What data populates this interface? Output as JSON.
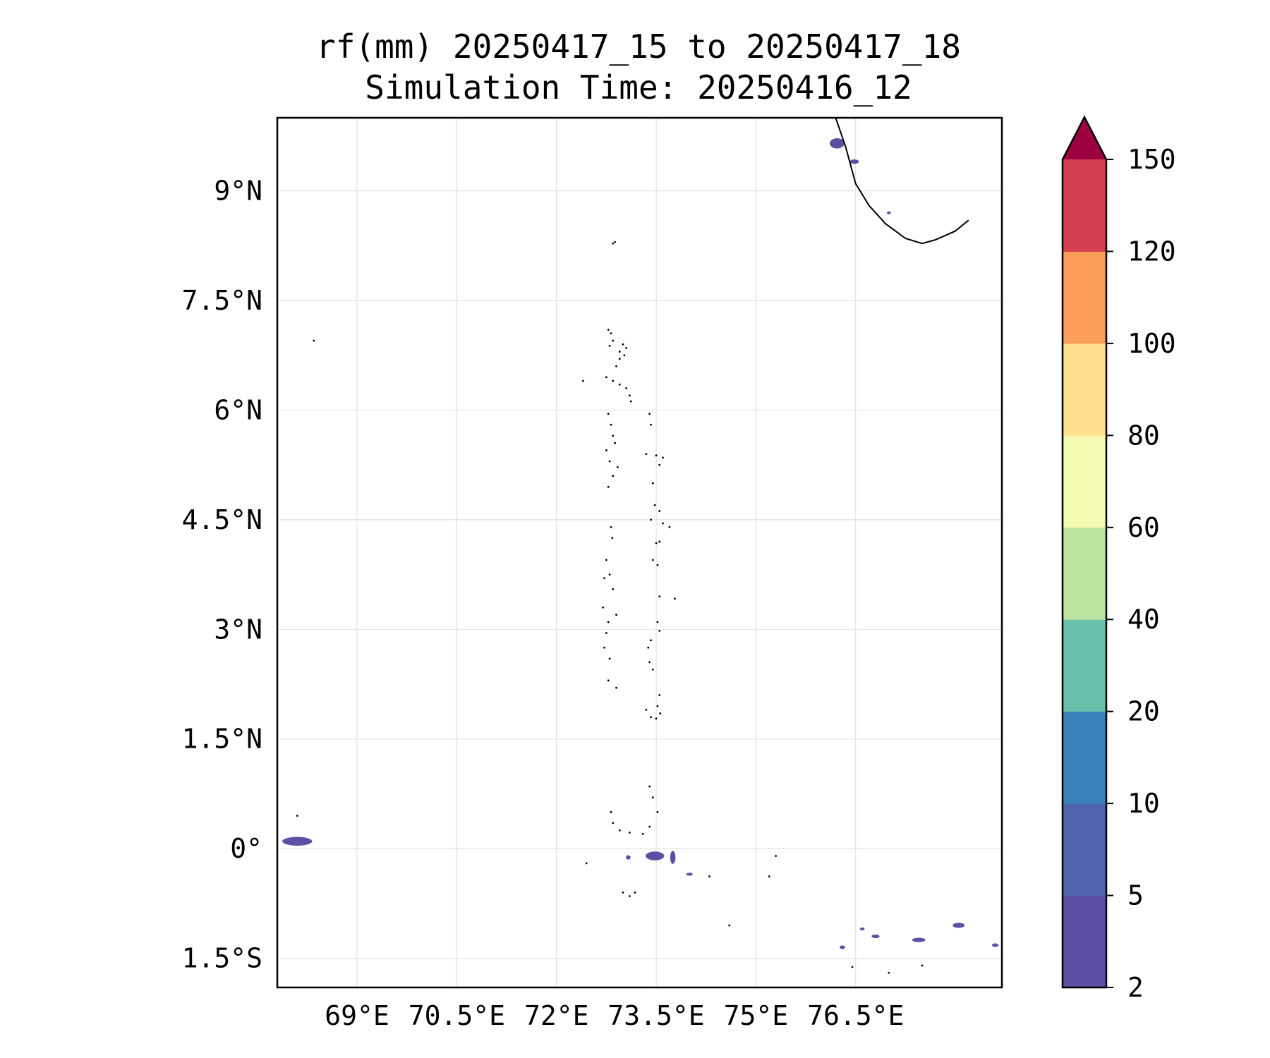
{
  "figure": {
    "title_line1": "rf(mm) 20250417_15 to 20250417_18",
    "title_line2": "Simulation Time: 20250416_12"
  },
  "map": {
    "lon_range": [
      67.8,
      78.7
    ],
    "lat_range": [
      -1.9,
      10.0
    ],
    "lon_ticks": [
      {
        "value": 69.0,
        "label": "69°E"
      },
      {
        "value": 70.5,
        "label": "70.5°E"
      },
      {
        "value": 72.0,
        "label": "72°E"
      },
      {
        "value": 73.5,
        "label": "73.5°E"
      },
      {
        "value": 75.0,
        "label": "75°E"
      },
      {
        "value": 76.5,
        "label": "76.5°E"
      }
    ],
    "lat_ticks": [
      {
        "value": 9.0,
        "label": "9°N"
      },
      {
        "value": 7.5,
        "label": "7.5°N"
      },
      {
        "value": 6.0,
        "label": "6°N"
      },
      {
        "value": 4.5,
        "label": "4.5°N"
      },
      {
        "value": 3.0,
        "label": "3°N"
      },
      {
        "value": 1.5,
        "label": "1.5°N"
      },
      {
        "value": 0.0,
        "label": "0°"
      },
      {
        "value": -1.5,
        "label": "1.5°S"
      }
    ],
    "gridlines": true,
    "coastline_colors": {
      "line": "#000000",
      "rain": "#5e4fa2"
    },
    "coastline": [
      [
        76.2,
        10.0
      ],
      [
        76.35,
        9.6
      ],
      [
        76.5,
        9.1
      ],
      [
        76.7,
        8.8
      ],
      [
        76.95,
        8.55
      ],
      [
        77.25,
        8.35
      ],
      [
        77.5,
        8.28
      ],
      [
        77.7,
        8.33
      ],
      [
        78.0,
        8.45
      ],
      [
        78.2,
        8.6
      ]
    ],
    "rain_patches": [
      {
        "lon": 68.1,
        "lat": 0.1,
        "w": 0.45,
        "h": 0.12
      },
      {
        "lon": 73.48,
        "lat": -0.1,
        "w": 0.28,
        "h": 0.12
      },
      {
        "lon": 73.75,
        "lat": -0.12,
        "w": 0.08,
        "h": 0.18
      },
      {
        "lon": 73.08,
        "lat": -0.12,
        "w": 0.07,
        "h": 0.06
      },
      {
        "lon": 74.0,
        "lat": -0.35,
        "w": 0.1,
        "h": 0.04
      },
      {
        "lon": 76.22,
        "lat": 9.65,
        "w": 0.22,
        "h": 0.14
      },
      {
        "lon": 76.48,
        "lat": 9.4,
        "w": 0.14,
        "h": 0.06
      },
      {
        "lon": 77.0,
        "lat": 8.7,
        "w": 0.06,
        "h": 0.04
      },
      {
        "lon": 76.8,
        "lat": -1.2,
        "w": 0.12,
        "h": 0.05
      },
      {
        "lon": 77.45,
        "lat": -1.25,
        "w": 0.2,
        "h": 0.06
      },
      {
        "lon": 78.05,
        "lat": -1.05,
        "w": 0.18,
        "h": 0.07
      },
      {
        "lon": 76.3,
        "lat": -1.35,
        "w": 0.08,
        "h": 0.05
      },
      {
        "lon": 76.6,
        "lat": -1.1,
        "w": 0.07,
        "h": 0.04
      },
      {
        "lon": 78.6,
        "lat": -1.32,
        "w": 0.1,
        "h": 0.05
      }
    ],
    "islands": [
      [
        72.85,
        8.28
      ],
      [
        72.88,
        8.3
      ],
      [
        68.35,
        6.95
      ],
      [
        72.78,
        7.1
      ],
      [
        72.82,
        7.05
      ],
      [
        72.85,
        6.95
      ],
      [
        72.8,
        6.88
      ],
      [
        72.95,
        6.8
      ],
      [
        73.0,
        6.9
      ],
      [
        73.05,
        6.85
      ],
      [
        72.95,
        6.7
      ],
      [
        73.02,
        6.75
      ],
      [
        72.9,
        6.6
      ],
      [
        72.4,
        6.4
      ],
      [
        72.75,
        6.45
      ],
      [
        72.85,
        6.4
      ],
      [
        72.95,
        6.35
      ],
      [
        73.05,
        6.3
      ],
      [
        73.1,
        6.2
      ],
      [
        73.12,
        6.12
      ],
      [
        72.78,
        5.95
      ],
      [
        72.82,
        5.8
      ],
      [
        72.85,
        5.65
      ],
      [
        72.88,
        5.55
      ],
      [
        72.75,
        5.45
      ],
      [
        72.8,
        5.3
      ],
      [
        72.92,
        5.22
      ],
      [
        72.85,
        5.1
      ],
      [
        72.78,
        4.95
      ],
      [
        73.4,
        5.95
      ],
      [
        73.42,
        5.8
      ],
      [
        73.35,
        5.4
      ],
      [
        73.5,
        5.38
      ],
      [
        73.6,
        5.35
      ],
      [
        73.55,
        5.25
      ],
      [
        73.45,
        5.0
      ],
      [
        73.48,
        4.7
      ],
      [
        73.55,
        4.62
      ],
      [
        73.42,
        4.5
      ],
      [
        73.6,
        4.45
      ],
      [
        73.7,
        4.4
      ],
      [
        72.82,
        4.4
      ],
      [
        72.84,
        4.25
      ],
      [
        73.5,
        4.18
      ],
      [
        73.55,
        4.2
      ],
      [
        73.45,
        3.95
      ],
      [
        73.52,
        3.88
      ],
      [
        72.75,
        3.95
      ],
      [
        72.72,
        3.7
      ],
      [
        72.8,
        3.75
      ],
      [
        72.85,
        3.55
      ],
      [
        73.55,
        3.45
      ],
      [
        73.78,
        3.42
      ],
      [
        72.7,
        3.3
      ],
      [
        72.9,
        3.2
      ],
      [
        72.78,
        3.1
      ],
      [
        72.75,
        2.95
      ],
      [
        73.52,
        3.1
      ],
      [
        73.55,
        2.98
      ],
      [
        73.42,
        2.85
      ],
      [
        73.38,
        2.75
      ],
      [
        72.72,
        2.75
      ],
      [
        72.8,
        2.6
      ],
      [
        73.4,
        2.55
      ],
      [
        73.45,
        2.45
      ],
      [
        72.78,
        2.3
      ],
      [
        72.9,
        2.2
      ],
      [
        73.55,
        2.1
      ],
      [
        73.52,
        1.95
      ],
      [
        73.35,
        1.9
      ],
      [
        73.42,
        1.8
      ],
      [
        73.5,
        1.78
      ],
      [
        73.56,
        1.85
      ],
      [
        73.4,
        0.85
      ],
      [
        73.45,
        0.7
      ],
      [
        73.52,
        0.5
      ],
      [
        72.82,
        0.5
      ],
      [
        72.85,
        0.35
      ],
      [
        72.95,
        0.25
      ],
      [
        73.1,
        0.22
      ],
      [
        73.3,
        0.2
      ],
      [
        73.4,
        0.3
      ],
      [
        68.1,
        0.45
      ],
      [
        72.45,
        -0.2
      ],
      [
        73.0,
        -0.6
      ],
      [
        73.1,
        -0.65
      ],
      [
        73.18,
        -0.6
      ],
      [
        74.6,
        -1.05
      ],
      [
        74.3,
        -0.38
      ],
      [
        75.3,
        -0.1
      ],
      [
        75.2,
        -0.38
      ],
      [
        76.45,
        -1.62
      ],
      [
        77.0,
        -1.7
      ],
      [
        77.5,
        -1.6
      ]
    ]
  },
  "colorbar": {
    "levels": [
      {
        "label": "2",
        "color": "#5e4fa2"
      },
      {
        "label": "5",
        "color": "#4f62ac"
      },
      {
        "label": "10",
        "color": "#3a81b8"
      },
      {
        "label": "20",
        "color": "#66c0aa"
      },
      {
        "label": "40",
        "color": "#bde3a1"
      },
      {
        "label": "60",
        "color": "#f3fbb1"
      },
      {
        "label": "80",
        "color": "#fddf8f"
      },
      {
        "label": "100",
        "color": "#f99d58"
      },
      {
        "label": "120",
        "color": "#d43f4f"
      },
      {
        "label": "150",
        "color": "#9e0142"
      }
    ],
    "extend": "max"
  }
}
